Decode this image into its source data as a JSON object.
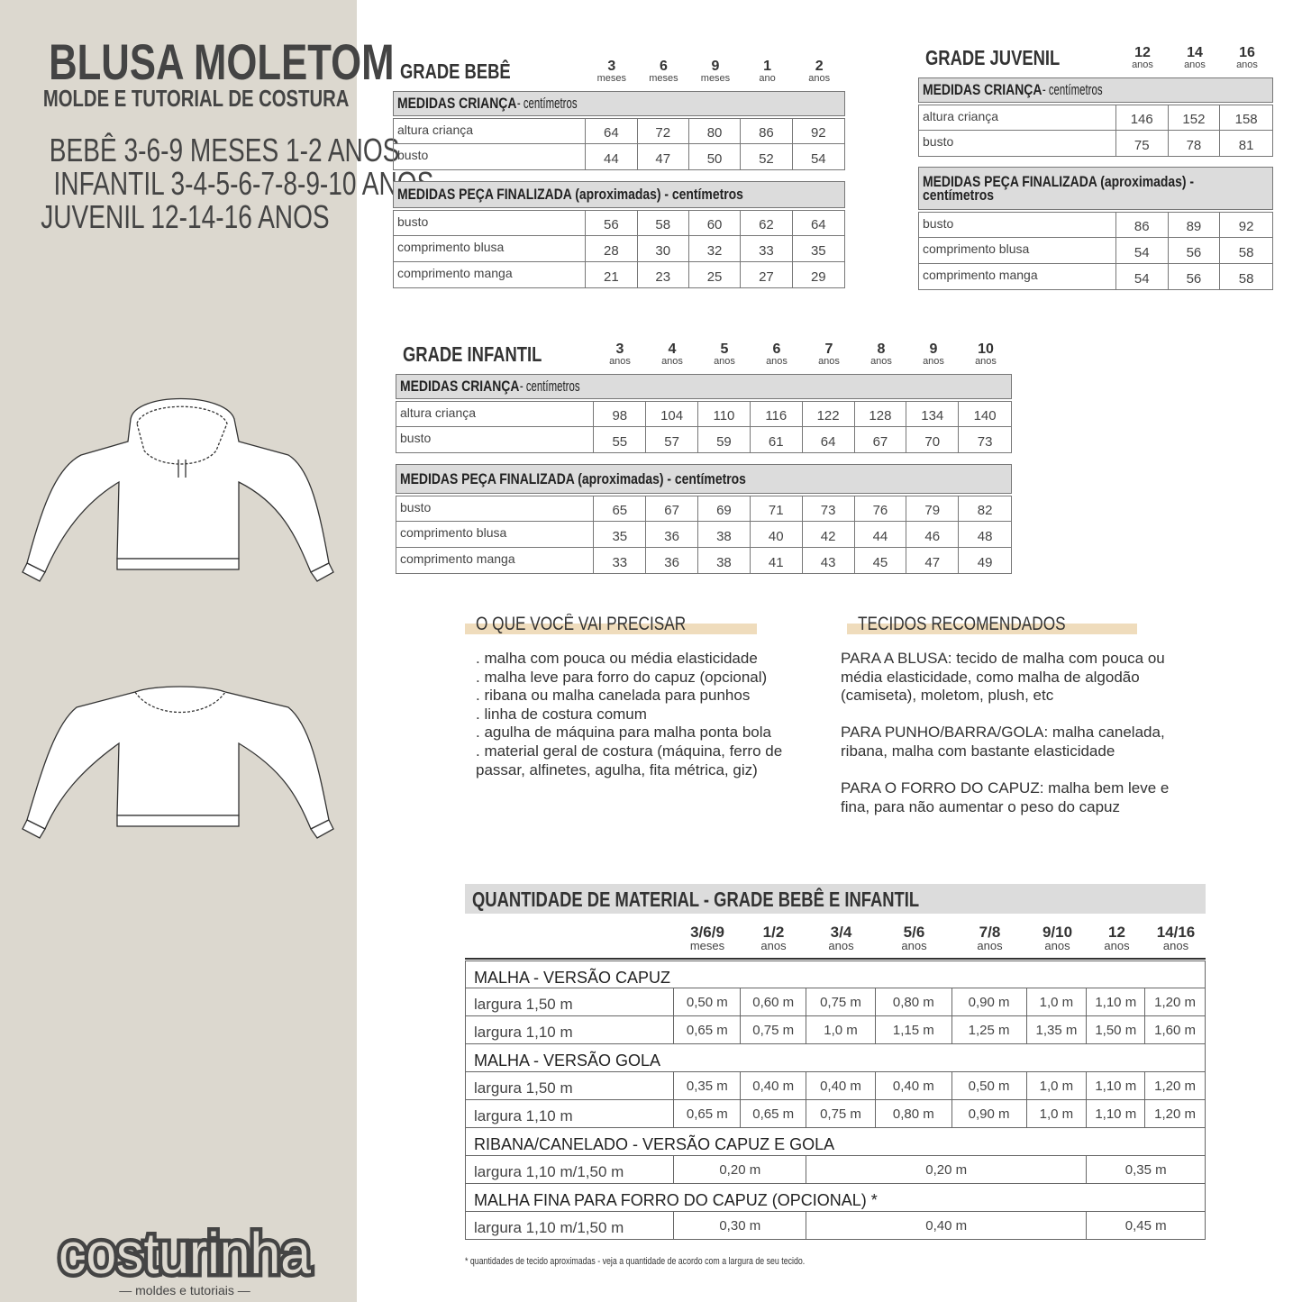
{
  "header": {
    "title": "BLUSA MOLETOM",
    "subtitle": "MOLDE E TUTORIAL DE COSTURA",
    "sizes": [
      "BEBÊ 3-6-9 MESES 1-2 ANOS",
      "INFANTIL 3-4-5-6-7-8-9-10 ANOS",
      "JUVENIL 12-14-16 ANOS"
    ]
  },
  "logo": {
    "name": "costurinha",
    "tagline": "— moldes e tutoriais —"
  },
  "illustrations": [
    "hoodie-drawing",
    "crewneck-sweatshirt-drawing"
  ],
  "bebe": {
    "title": "GRADE BEBÊ",
    "columns": [
      {
        "n": "3",
        "u": "meses"
      },
      {
        "n": "6",
        "u": "meses"
      },
      {
        "n": "9",
        "u": "meses"
      },
      {
        "n": "1",
        "u": "ano"
      },
      {
        "n": "2",
        "u": "anos"
      }
    ],
    "sections": [
      {
        "bold": "MEDIDAS CRIANÇA",
        "rest": " - centímetros",
        "rows": [
          {
            "label": "altura criança",
            "values": [
              "64",
              "72",
              "80",
              "86",
              "92"
            ]
          },
          {
            "label": "busto",
            "values": [
              "44",
              "47",
              "50",
              "52",
              "54"
            ]
          }
        ]
      },
      {
        "bold": "MEDIDAS PEÇA FINALIZADA (aproximadas) - centímetros",
        "rest": "",
        "rows": [
          {
            "label": "busto",
            "values": [
              "56",
              "58",
              "60",
              "62",
              "64"
            ]
          },
          {
            "label": "comprimento blusa",
            "values": [
              "28",
              "30",
              "32",
              "33",
              "35"
            ]
          },
          {
            "label": "comprimento manga",
            "values": [
              "21",
              "23",
              "25",
              "27",
              "29"
            ]
          }
        ]
      }
    ]
  },
  "juvenil": {
    "title": "GRADE JUVENIL",
    "columns": [
      {
        "n": "12",
        "u": "anos"
      },
      {
        "n": "14",
        "u": "anos"
      },
      {
        "n": "16",
        "u": "anos"
      }
    ],
    "sections": [
      {
        "bold": "MEDIDAS CRIANÇA",
        "rest": " - centímetros",
        "rows": [
          {
            "label": "altura criança",
            "values": [
              "146",
              "152",
              "158"
            ]
          },
          {
            "label": "busto",
            "values": [
              "75",
              "78",
              "81"
            ]
          }
        ]
      },
      {
        "bold": "MEDIDAS PEÇA FINALIZADA (aproximadas) - centímetros",
        "rest": "",
        "rows": [
          {
            "label": "busto",
            "values": [
              "86",
              "89",
              "92"
            ]
          },
          {
            "label": "comprimento blusa",
            "values": [
              "54",
              "56",
              "58"
            ]
          },
          {
            "label": "comprimento manga",
            "values": [
              "54",
              "56",
              "58"
            ]
          }
        ]
      }
    ]
  },
  "infantil": {
    "title": "GRADE INFANTIL",
    "columns": [
      {
        "n": "3",
        "u": "anos"
      },
      {
        "n": "4",
        "u": "anos"
      },
      {
        "n": "5",
        "u": "anos"
      },
      {
        "n": "6",
        "u": "anos"
      },
      {
        "n": "7",
        "u": "anos"
      },
      {
        "n": "8",
        "u": "anos"
      },
      {
        "n": "9",
        "u": "anos"
      },
      {
        "n": "10",
        "u": "anos"
      }
    ],
    "sections": [
      {
        "bold": "MEDIDAS CRIANÇA",
        "rest": " - centímetros",
        "rows": [
          {
            "label": "altura criança",
            "values": [
              "98",
              "104",
              "110",
              "116",
              "122",
              "128",
              "134",
              "140"
            ]
          },
          {
            "label": "busto",
            "values": [
              "55",
              "57",
              "59",
              "61",
              "64",
              "67",
              "70",
              "73"
            ]
          }
        ]
      },
      {
        "bold": "MEDIDAS PEÇA FINALIZADA (aproximadas) - centímetros",
        "rest": "",
        "rows": [
          {
            "label": "busto",
            "values": [
              "65",
              "67",
              "69",
              "71",
              "73",
              "76",
              "79",
              "82"
            ]
          },
          {
            "label": "comprimento blusa",
            "values": [
              "35",
              "36",
              "38",
              "40",
              "42",
              "44",
              "46",
              "48"
            ]
          },
          {
            "label": "comprimento manga",
            "values": [
              "33",
              "36",
              "38",
              "41",
              "43",
              "45",
              "47",
              "49"
            ]
          }
        ]
      }
    ]
  },
  "precisar": {
    "title": "O QUE VOCÊ VAI PRECISAR",
    "lines": [
      ". malha com pouca ou média elasticidade",
      ". malha leve para forro do capuz (opcional)",
      ". ribana ou malha canelada para punhos",
      ". linha de costura comum",
      ". agulha de máquina para malha ponta bola",
      ". material geral de costura (máquina, ferro de",
      "passar, alfinetes, agulha, fita métrica, giz)"
    ]
  },
  "tecidos": {
    "title": "TECIDOS RECOMENDADOS",
    "paragraphs": [
      {
        "lead": "PARA A BLUSA",
        "text": ": tecido de malha com pouca ou média elasticidade, como malha de algodão (camiseta), moletom, plush, etc"
      },
      {
        "lead": "PARA PUNHO/BARRA/GOLA",
        "text": ": malha canelada, ribana, malha com bastante elasticidade"
      },
      {
        "lead": "PARA O FORRO DO CAPUZ",
        "text": ": malha bem leve e fina, para não aumentar o peso do capuz"
      }
    ]
  },
  "material": {
    "title": "QUANTIDADE DE MATERIAL - GRADE BEBÊ E INFANTIL",
    "columns": [
      {
        "n": "3/6/9",
        "u": "meses"
      },
      {
        "n": "1/2",
        "u": "anos"
      },
      {
        "n": "3/4",
        "u": "anos"
      },
      {
        "n": "5/6",
        "u": "anos"
      },
      {
        "n": "7/8",
        "u": "anos"
      },
      {
        "n": "9/10",
        "u": "anos"
      },
      {
        "n": "12",
        "u": "anos"
      },
      {
        "n": "14/16",
        "u": "anos"
      }
    ],
    "rows": [
      {
        "section": "MALHA - VERSÃO CAPUZ"
      },
      {
        "label": "largura 1,50 m",
        "cells": [
          {
            "v": "0,50 m",
            "span": 1
          },
          {
            "v": "0,60 m",
            "span": 1
          },
          {
            "v": "0,75 m",
            "span": 1
          },
          {
            "v": "0,80 m",
            "span": 1
          },
          {
            "v": "0,90 m",
            "span": 1
          },
          {
            "v": "1,0 m",
            "span": 1
          },
          {
            "v": "1,10 m",
            "span": 1
          },
          {
            "v": "1,20 m",
            "span": 1
          }
        ]
      },
      {
        "label": "largura 1,10 m",
        "cells": [
          {
            "v": "0,65  m",
            "span": 1
          },
          {
            "v": "0,75  m",
            "span": 1
          },
          {
            "v": "1,0 m",
            "span": 1
          },
          {
            "v": "1,15 m",
            "span": 1
          },
          {
            "v": "1,25 m",
            "span": 1
          },
          {
            "v": "1,35 m",
            "span": 1
          },
          {
            "v": "1,50 m",
            "span": 1
          },
          {
            "v": "1,60 m",
            "span": 1
          }
        ]
      },
      {
        "section": "MALHA - VERSÃO GOLA"
      },
      {
        "label": "largura 1,50 m",
        "cells": [
          {
            "v": "0,35 m",
            "span": 1
          },
          {
            "v": "0,40 m",
            "span": 1
          },
          {
            "v": "0,40 m",
            "span": 1
          },
          {
            "v": "0,40 m",
            "span": 1
          },
          {
            "v": "0,50 m",
            "span": 1
          },
          {
            "v": "1,0 m",
            "span": 1
          },
          {
            "v": "1,10 m",
            "span": 1
          },
          {
            "v": "1,20 m",
            "span": 1
          }
        ]
      },
      {
        "label": "largura 1,10 m",
        "cells": [
          {
            "v": "0,65 m",
            "span": 1
          },
          {
            "v": "0,65 m",
            "span": 1
          },
          {
            "v": "0,75 m",
            "span": 1
          },
          {
            "v": "0,80 m",
            "span": 1
          },
          {
            "v": "0,90 m",
            "span": 1
          },
          {
            "v": "1,0 m",
            "span": 1
          },
          {
            "v": "1,10 m",
            "span": 1
          },
          {
            "v": "1,20 m",
            "span": 1
          }
        ]
      },
      {
        "section": "RIBANA/CANELADO - VERSÃO CAPUZ E GOLA"
      },
      {
        "label": "largura 1,10 m/1,50 m",
        "cells": [
          {
            "v": "0,20 m",
            "span": 2
          },
          {
            "v": "0,20 m",
            "span": 4
          },
          {
            "v": "0,35 m",
            "span": 2
          }
        ]
      },
      {
        "section": "MALHA FINA PARA FORRO DO CAPUZ (OPCIONAL) *"
      },
      {
        "label": "largura 1,10 m/1,50 m",
        "cells": [
          {
            "v": "0,30 m",
            "span": 2
          },
          {
            "v": "0,40 m",
            "span": 4
          },
          {
            "v": "0,45 m",
            "span": 2
          }
        ]
      }
    ],
    "footnote": "* quantidades de tecido aproximadas - veja a quantidade de acordo com a largura de seu tecido."
  },
  "colors": {
    "sidebar": "#dcd8cf",
    "header_gray": "#dcdcdc",
    "highlight": "#efdcbc",
    "text": "#444444"
  }
}
